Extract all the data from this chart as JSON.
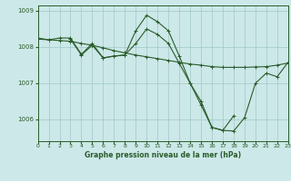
{
  "background_color": "#cce8e8",
  "grid_color": "#a0c8c8",
  "line_color": "#2a5c2a",
  "title": "Graphe pression niveau de la mer (hPa)",
  "xlim": [
    0,
    23
  ],
  "ylim": [
    1005.4,
    1009.15
  ],
  "yticks": [
    1006,
    1007,
    1008,
    1009
  ],
  "xticks": [
    0,
    1,
    2,
    3,
    4,
    5,
    6,
    7,
    8,
    9,
    10,
    11,
    12,
    13,
    14,
    15,
    16,
    17,
    18,
    19,
    20,
    21,
    22,
    23
  ],
  "series1_x": [
    0,
    1,
    2,
    3,
    4,
    5,
    6,
    7,
    8,
    9,
    10,
    11,
    12,
    13,
    14,
    15,
    16,
    17,
    18,
    19,
    20,
    21,
    22,
    23
  ],
  "series1_y": [
    1008.25,
    1008.2,
    1008.25,
    1008.25,
    1007.8,
    1008.1,
    1007.7,
    1007.75,
    1007.78,
    1008.45,
    1008.88,
    1008.7,
    1008.45,
    1007.75,
    1007.0,
    1006.5,
    1005.78,
    1005.7,
    1005.68,
    1006.05,
    1007.0,
    1007.28,
    1007.18,
    1007.58
  ],
  "series2_x": [
    0,
    1,
    2,
    3,
    4,
    5,
    6,
    7,
    8,
    9,
    10,
    11,
    12,
    13,
    14,
    15,
    16,
    17,
    18,
    19,
    20,
    21,
    22,
    23
  ],
  "series2_y": [
    1008.22,
    1008.2,
    1008.18,
    1008.16,
    1008.1,
    1008.05,
    1007.98,
    1007.9,
    1007.84,
    1007.78,
    1007.73,
    1007.68,
    1007.63,
    1007.58,
    1007.53,
    1007.5,
    1007.46,
    1007.44,
    1007.44,
    1007.44,
    1007.45,
    1007.46,
    1007.5,
    1007.56
  ],
  "series3_x": [
    3,
    4,
    5,
    6,
    7,
    8,
    9,
    10,
    11,
    12,
    13,
    14,
    15,
    16,
    17,
    18
  ],
  "series3_y": [
    1008.22,
    1007.78,
    1008.05,
    1007.7,
    1007.75,
    1007.78,
    1008.1,
    1008.5,
    1008.35,
    1008.1,
    1007.55,
    1007.0,
    1006.4,
    1005.78,
    1005.7,
    1006.1
  ]
}
